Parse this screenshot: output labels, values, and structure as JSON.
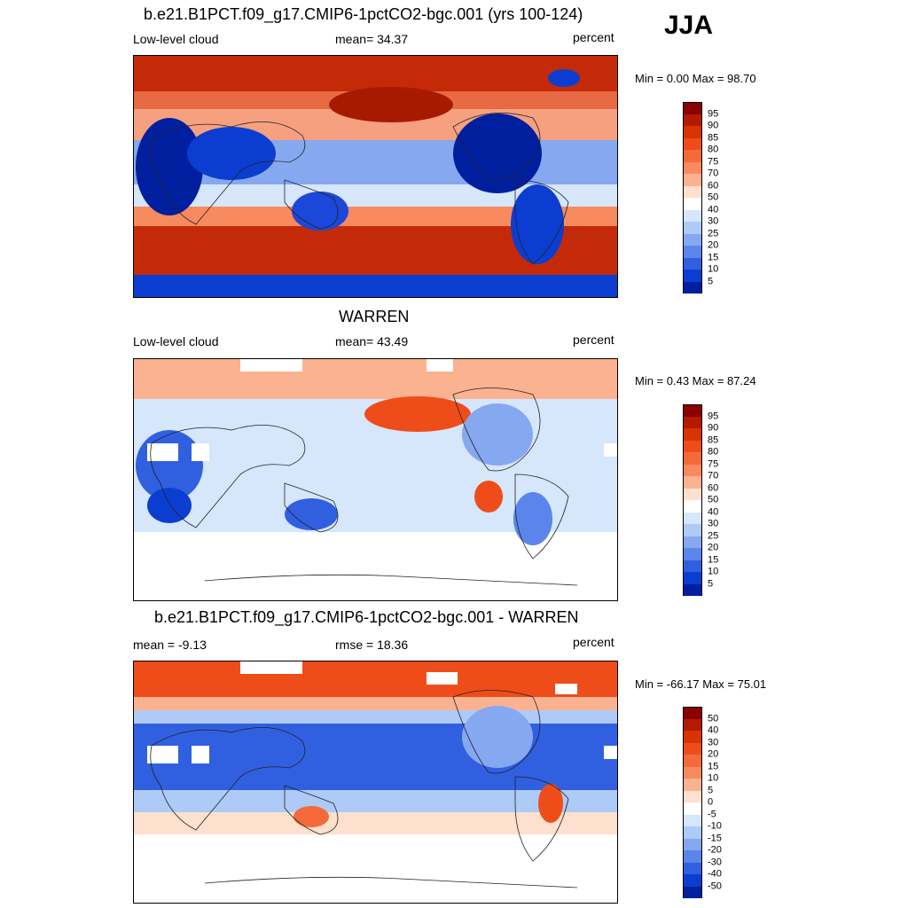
{
  "season": "JJA",
  "panels": [
    {
      "title": "b.e21.B1PCT.f09_g17.CMIP6-1pctCO2-bgc.001 (yrs 100-124)",
      "left_label": "Low-level cloud",
      "center_label": "mean=  34.37",
      "right_label": "percent",
      "minmax": "Min =   0.00 Max =  98.70",
      "colorbar": {
        "labels": [
          "95",
          "90",
          "85",
          "80",
          "75",
          "70",
          "60",
          "50",
          "40",
          "30",
          "25",
          "20",
          "15",
          "10",
          "5"
        ],
        "colors": [
          "#8b0000",
          "#b31a00",
          "#d93300",
          "#ee4d1a",
          "#f56a3b",
          "#f88a5f",
          "#fbb291",
          "#fde0cd",
          "#ffffff",
          "#d6e6fb",
          "#aecaf6",
          "#86a8f0",
          "#5b85ea",
          "#3060e0",
          "#0b3ed0",
          "#001f9f"
        ]
      }
    },
    {
      "title": "WARREN",
      "left_label": "Low-level cloud",
      "center_label": "mean=  43.49",
      "right_label": "percent",
      "minmax": "Min =   0.43 Max =  87.24",
      "colorbar": {
        "labels": [
          "95",
          "90",
          "85",
          "80",
          "75",
          "70",
          "60",
          "50",
          "40",
          "30",
          "25",
          "20",
          "15",
          "10",
          "5"
        ],
        "colors": [
          "#8b0000",
          "#b31a00",
          "#d93300",
          "#ee4d1a",
          "#f56a3b",
          "#f88a5f",
          "#fbb291",
          "#fde0cd",
          "#ffffff",
          "#d6e6fb",
          "#aecaf6",
          "#86a8f0",
          "#5b85ea",
          "#3060e0",
          "#0b3ed0",
          "#001f9f"
        ]
      }
    },
    {
      "title": "b.e21.B1PCT.f09_g17.CMIP6-1pctCO2-bgc.001 - WARREN",
      "left_label": "mean =  -9.13",
      "center_label": "rmse =  18.36",
      "right_label": "percent",
      "minmax": "Min = -66.17 Max =  75.01",
      "colorbar": {
        "labels": [
          "50",
          "40",
          "30",
          "20",
          "15",
          "10",
          "5",
          "0",
          "-5",
          "-10",
          "-15",
          "-20",
          "-30",
          "-40",
          "-50"
        ],
        "colors": [
          "#8b0000",
          "#b31a00",
          "#d93300",
          "#ee4d1a",
          "#f56a3b",
          "#f88a5f",
          "#fbb291",
          "#fde0cd",
          "#ffffff",
          "#d6e6fb",
          "#aecaf6",
          "#86a8f0",
          "#5b85ea",
          "#3060e0",
          "#0b3ed0",
          "#001f9f"
        ]
      }
    }
  ]
}
